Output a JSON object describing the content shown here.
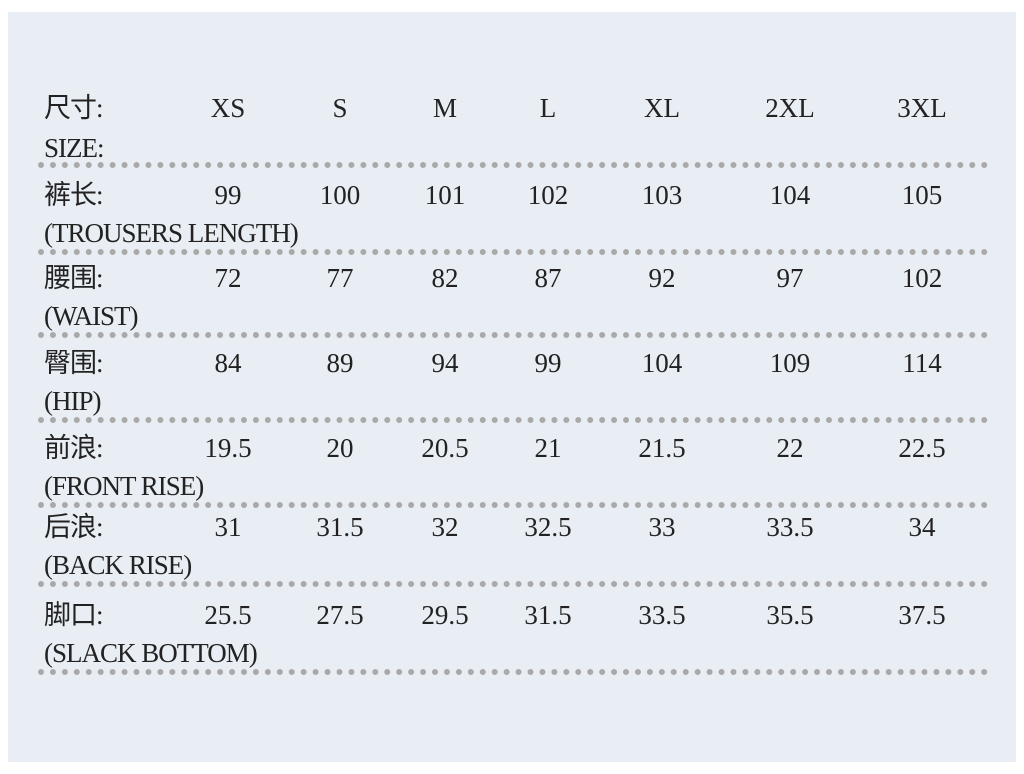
{
  "header": {
    "label_cn": "尺寸:",
    "label_en": "SIZE:",
    "sizes": [
      "XS",
      "S",
      "M",
      "L",
      "XL",
      "2XL",
      "3XL"
    ]
  },
  "rows": [
    {
      "label_cn": "裤长:",
      "label_en": "(TROUSERS LENGTH)",
      "values": [
        99,
        100,
        101,
        102,
        103,
        104,
        105
      ]
    },
    {
      "label_cn": "腰围:",
      "label_en": "(WAIST)",
      "values": [
        72,
        77,
        82,
        87,
        92,
        97,
        102
      ]
    },
    {
      "label_cn": "臀围:",
      "label_en": "(HIP)",
      "values": [
        84,
        89,
        94,
        99,
        104,
        109,
        114
      ]
    },
    {
      "label_cn": "前浪:",
      "label_en": "(FRONT RISE)",
      "values": [
        19.5,
        20,
        20.5,
        21,
        21.5,
        22,
        22.5
      ]
    },
    {
      "label_cn": "后浪:",
      "label_en": "(BACK RISE)",
      "values": [
        31,
        31.5,
        32,
        32.5,
        33,
        33.5,
        34
      ]
    },
    {
      "label_cn": "脚口:",
      "label_en": "(SLACK BOTTOM)",
      "values": [
        25.5,
        27.5,
        29.5,
        31.5,
        33.5,
        35.5,
        37.5
      ]
    }
  ]
}
